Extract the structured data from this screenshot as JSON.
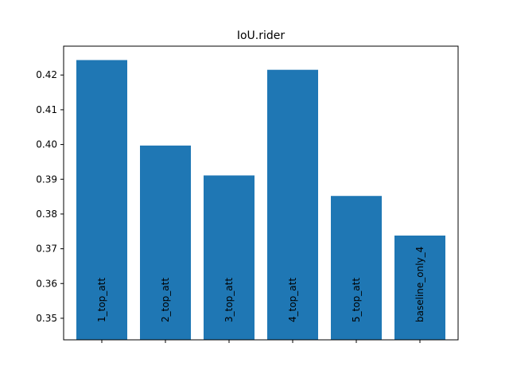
{
  "chart_data": {
    "type": "bar",
    "title": "IoU.rider",
    "xlabel": "",
    "ylabel": "",
    "categories": [
      "1_top_att",
      "2_top_att",
      "3_top_att",
      "4_top_att",
      "5_top_att",
      "baseline_only_4"
    ],
    "values": [
      0.4243,
      0.3997,
      0.3911,
      0.4215,
      0.3852,
      0.3738
    ],
    "ylim": [
      0.3438,
      0.4283
    ],
    "yticks": [
      0.35,
      0.36,
      0.37,
      0.38,
      0.39,
      0.4,
      0.41,
      0.42
    ],
    "ytick_labels": [
      "0.35",
      "0.36",
      "0.37",
      "0.38",
      "0.39",
      "0.40",
      "0.41",
      "0.42"
    ],
    "bar_color": "#1f77b4",
    "grid": false,
    "legend": "none",
    "category_label_placement": "inside-bars-rotated"
  }
}
